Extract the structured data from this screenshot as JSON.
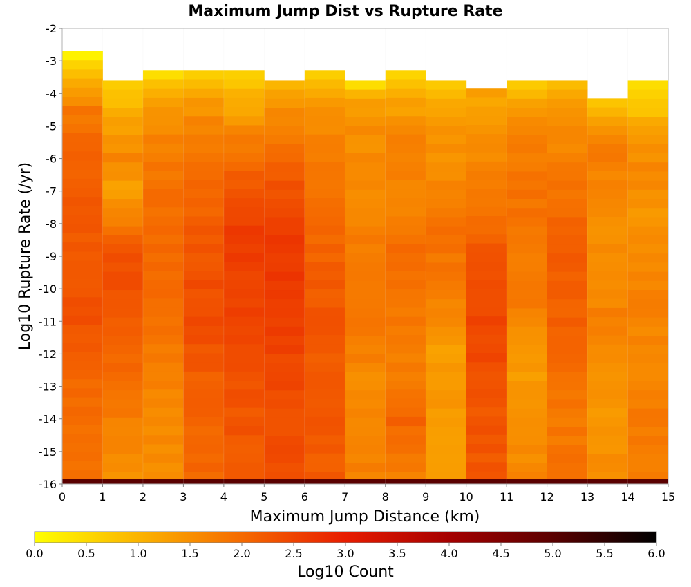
{
  "chart_data": {
    "type": "heatmap",
    "title": "Maximum Jump Dist vs Rupture Rate",
    "xlabel": "Maximum Jump Distance (km)",
    "ylabel": "Log10 Rupture Rate (/yr)",
    "xlim": [
      0,
      15
    ],
    "ylim": [
      -16,
      -2
    ],
    "x_ticks": [
      "0",
      "1",
      "2",
      "3",
      "4",
      "5",
      "6",
      "7",
      "8",
      "9",
      "10",
      "11",
      "12",
      "13",
      "14",
      "15"
    ],
    "y_ticks": [
      "-2",
      "-3",
      "-4",
      "-5",
      "-6",
      "-7",
      "-8",
      "-9",
      "-10",
      "-11",
      "-12",
      "-13",
      "-14",
      "-15",
      "-16"
    ],
    "x_bin_width_km": 1,
    "y_bin_height": 0.28,
    "column_top_log_rate": [
      -2.7,
      -3.6,
      -3.3,
      -3.3,
      -3.3,
      -3.6,
      -3.3,
      -3.6,
      -3.3,
      -3.6,
      -3.85,
      -3.6,
      -3.6,
      -4.15,
      -3.6
    ],
    "top_bottom_edge": -16,
    "top_row_value_log_count": 6.0,
    "column_profiles_log_count": [
      [
        [
          -2.7,
          0.1
        ],
        [
          -3.3,
          0.9
        ],
        [
          -4.5,
          1.8
        ],
        [
          -6,
          2.1
        ],
        [
          -8,
          2.2
        ],
        [
          -11,
          2.3
        ],
        [
          -13,
          2.0
        ],
        [
          -16,
          1.9
        ]
      ],
      [
        [
          -3.6,
          0.5
        ],
        [
          -4.5,
          1.1
        ],
        [
          -6,
          1.6
        ],
        [
          -7,
          1.3
        ],
        [
          -8,
          1.8
        ],
        [
          -9,
          2.4
        ],
        [
          -11,
          2.2
        ],
        [
          -13,
          1.9
        ],
        [
          -15,
          1.6
        ],
        [
          -16,
          1.5
        ]
      ],
      [
        [
          -3.3,
          0.4
        ],
        [
          -4.2,
          1.3
        ],
        [
          -5,
          1.6
        ],
        [
          -7,
          1.9
        ],
        [
          -9,
          2.0
        ],
        [
          -11,
          1.9
        ],
        [
          -13,
          1.7
        ],
        [
          -15,
          1.5
        ],
        [
          -16,
          1.6
        ]
      ],
      [
        [
          -3.3,
          0.5
        ],
        [
          -4.0,
          1.2
        ],
        [
          -5,
          1.7
        ],
        [
          -7,
          2.0
        ],
        [
          -9,
          2.3
        ],
        [
          -11,
          2.4
        ],
        [
          -13,
          2.1
        ],
        [
          -16,
          2.0
        ]
      ],
      [
        [
          -3.3,
          0.6
        ],
        [
          -4.3,
          1.1
        ],
        [
          -5.5,
          1.8
        ],
        [
          -7,
          2.3
        ],
        [
          -8.5,
          2.6
        ],
        [
          -10.5,
          2.5
        ],
        [
          -13,
          2.3
        ],
        [
          -16,
          2.2
        ]
      ],
      [
        [
          -3.6,
          0.9
        ],
        [
          -4.5,
          1.5
        ],
        [
          -6,
          2.1
        ],
        [
          -8,
          2.5
        ],
        [
          -9.5,
          2.7
        ],
        [
          -11,
          2.6
        ],
        [
          -13,
          2.4
        ],
        [
          -16,
          2.3
        ]
      ],
      [
        [
          -3.3,
          0.5
        ],
        [
          -4.2,
          1.3
        ],
        [
          -5.5,
          1.7
        ],
        [
          -7,
          1.9
        ],
        [
          -9,
          2.1
        ],
        [
          -11,
          2.3
        ],
        [
          -13,
          2.2
        ],
        [
          -16,
          2.2
        ]
      ],
      [
        [
          -3.6,
          0.3
        ],
        [
          -4.2,
          1.3
        ],
        [
          -5,
          1.5
        ],
        [
          -7,
          1.6
        ],
        [
          -9,
          1.8
        ],
        [
          -11,
          1.9
        ],
        [
          -13,
          1.5
        ],
        [
          -16,
          1.7
        ]
      ],
      [
        [
          -3.3,
          0.5
        ],
        [
          -4.2,
          1.2
        ],
        [
          -5.5,
          1.7
        ],
        [
          -7,
          1.6
        ],
        [
          -9,
          2.0
        ],
        [
          -11,
          1.8
        ],
        [
          -13,
          1.7
        ],
        [
          -14,
          2.1
        ],
        [
          -16,
          1.6
        ]
      ],
      [
        [
          -3.6,
          0.6
        ],
        [
          -4.5,
          1.3
        ],
        [
          -6,
          1.5
        ],
        [
          -8,
          1.9
        ],
        [
          -10,
          1.8
        ],
        [
          -12,
          1.3
        ],
        [
          -14,
          1.4
        ],
        [
          -16,
          1.2
        ]
      ],
      [
        [
          -3.85,
          1.2
        ],
        [
          -5,
          1.4
        ],
        [
          -6.5,
          1.7
        ],
        [
          -8,
          2.0
        ],
        [
          -9.5,
          2.4
        ],
        [
          -11,
          2.5
        ],
        [
          -13,
          2.3
        ],
        [
          -16,
          2.2
        ]
      ],
      [
        [
          -3.6,
          0.5
        ],
        [
          -4.2,
          1.1
        ],
        [
          -5,
          1.6
        ],
        [
          -7,
          1.9
        ],
        [
          -9,
          1.8
        ],
        [
          -11,
          1.7
        ],
        [
          -12,
          1.3
        ],
        [
          -14,
          1.5
        ],
        [
          -16,
          1.6
        ]
      ],
      [
        [
          -3.6,
          0.9
        ],
        [
          -4.5,
          1.4
        ],
        [
          -6.5,
          1.8
        ],
        [
          -8,
          2.1
        ],
        [
          -10,
          2.2
        ],
        [
          -12,
          2.0
        ],
        [
          -14,
          1.8
        ],
        [
          -16,
          1.9
        ]
      ],
      [
        [
          -4.15,
          0.5
        ],
        [
          -4.8,
          1.3
        ],
        [
          -5.5,
          1.8
        ],
        [
          -7,
          1.6
        ],
        [
          -9,
          1.5
        ],
        [
          -11,
          1.7
        ],
        [
          -13,
          1.4
        ],
        [
          -16,
          1.5
        ]
      ],
      [
        [
          -3.6,
          0.3
        ],
        [
          -4.5,
          0.8
        ],
        [
          -5,
          1.3
        ],
        [
          -6.5,
          1.6
        ],
        [
          -8,
          1.4
        ],
        [
          -10,
          1.7
        ],
        [
          -12,
          1.6
        ],
        [
          -14,
          1.8
        ],
        [
          -16,
          1.7
        ]
      ]
    ],
    "colorbar": {
      "label": "Log10 Count",
      "min": 0,
      "max": 6,
      "ticks": [
        "0.0",
        "0.5",
        "1.0",
        "1.5",
        "2.0",
        "2.5",
        "3.0",
        "3.5",
        "4.0",
        "4.5",
        "5.0",
        "5.5",
        "6.0"
      ],
      "stops": [
        {
          "value": 0.0,
          "color": "#ffff00"
        },
        {
          "value": 1.0,
          "color": "#fbb400"
        },
        {
          "value": 2.0,
          "color": "#f56a00"
        },
        {
          "value": 3.0,
          "color": "#e81c00"
        },
        {
          "value": 4.0,
          "color": "#a50000"
        },
        {
          "value": 5.0,
          "color": "#5a0000"
        },
        {
          "value": 6.0,
          "color": "#000000"
        }
      ]
    }
  }
}
